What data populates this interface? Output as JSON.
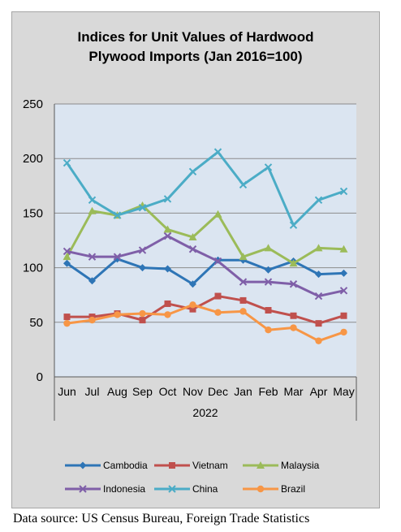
{
  "chart_data": {
    "type": "line",
    "title": "Indices for Unit Values of Hardwood Plywood Imports (Jan 2016=100)",
    "title_lines": [
      "Indices for Unit Values of Hardwood",
      "Plywood Imports (Jan 2016=100)"
    ],
    "categories": [
      "Jun",
      "Jul",
      "Aug",
      "Sep",
      "Oct",
      "Nov",
      "Dec",
      "Jan",
      "Feb",
      "Mar",
      "Apr",
      "May"
    ],
    "year_label": "2022",
    "ylim": [
      0,
      250
    ],
    "yticks": [
      0,
      50,
      100,
      150,
      200,
      250
    ],
    "grid": true,
    "legend_position": "bottom",
    "series": [
      {
        "name": "Cambodia",
        "color": "#2e75b6",
        "marker": "diamond",
        "values": [
          104,
          88,
          108,
          100,
          99,
          85,
          107,
          107,
          98,
          106,
          94,
          95
        ]
      },
      {
        "name": "Vietnam",
        "color": "#c0504d",
        "marker": "square",
        "values": [
          55,
          55,
          58,
          52,
          67,
          62,
          74,
          70,
          61,
          56,
          49,
          56
        ]
      },
      {
        "name": "Malaysia",
        "color": "#9bbb59",
        "marker": "triangle",
        "values": [
          110,
          152,
          148,
          157,
          135,
          128,
          149,
          110,
          118,
          104,
          118,
          117
        ]
      },
      {
        "name": "Indonesia",
        "color": "#7f5fa8",
        "marker": "x",
        "values": [
          115,
          110,
          110,
          116,
          129,
          117,
          106,
          87,
          87,
          85,
          74,
          79
        ]
      },
      {
        "name": "China",
        "color": "#4bacc6",
        "marker": "x",
        "values": [
          196,
          162,
          148,
          155,
          163,
          188,
          206,
          176,
          192,
          139,
          162,
          170
        ]
      },
      {
        "name": "Brazil",
        "color": "#f79646",
        "marker": "circle",
        "values": [
          49,
          52,
          57,
          58,
          57,
          66,
          59,
          60,
          43,
          45,
          33,
          41
        ]
      }
    ]
  },
  "source_text": "Data source: US Census Bureau, Foreign Trade Statistics"
}
